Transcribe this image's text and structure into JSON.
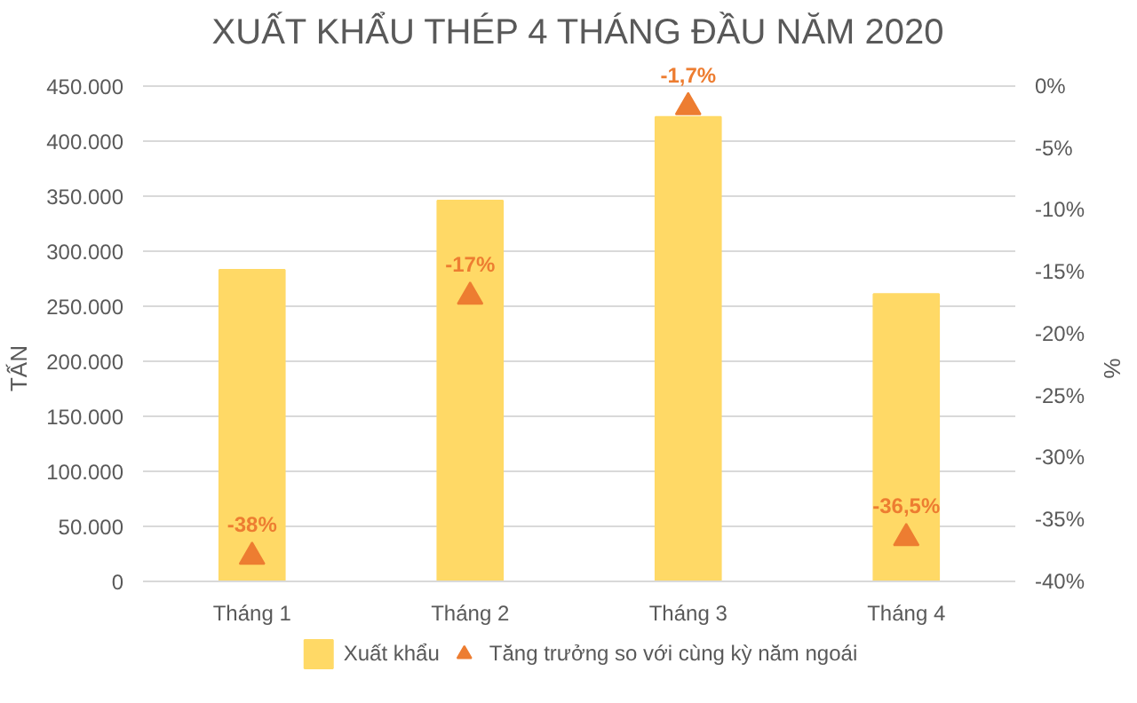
{
  "chart_data": {
    "type": "bar",
    "title": "XUẤT KHẨU THÉP 4 THÁNG ĐẦU NĂM 2020",
    "ylabel": "TẤN",
    "y2label": "%",
    "categories": [
      "Tháng 1",
      "Tháng 2",
      "Tháng 3",
      "Tháng 4"
    ],
    "series": [
      {
        "name": "Xuất khẩu",
        "color": "#ffd966",
        "values": [
          283000,
          346000,
          422000,
          261000
        ]
      },
      {
        "name": "Tăng trưởng so với cùng kỳ năm ngoái",
        "type": "scatter",
        "axis": "y2",
        "marker": "triangle",
        "color": "#ed7d31",
        "values": [
          -38,
          -17,
          -1.7,
          -36.5
        ],
        "value_labels": [
          "-38%",
          "-17%",
          "-1,7%",
          "-36,5%"
        ]
      }
    ],
    "ylim": [
      0,
      450000
    ],
    "yticks": [
      {
        "value": 0,
        "label": "0"
      },
      {
        "value": 50000,
        "label": "50.000"
      },
      {
        "value": 100000,
        "label": "100.000"
      },
      {
        "value": 150000,
        "label": "150.000"
      },
      {
        "value": 200000,
        "label": "200.000"
      },
      {
        "value": 250000,
        "label": "250.000"
      },
      {
        "value": 300000,
        "label": "300.000"
      },
      {
        "value": 350000,
        "label": "350.000"
      },
      {
        "value": 400000,
        "label": "400.000"
      },
      {
        "value": 450000,
        "label": "450.000"
      }
    ],
    "y2lim": [
      -40,
      0
    ],
    "y2ticks": [
      {
        "value": -40,
        "label": "-40%"
      },
      {
        "value": -35,
        "label": "-35%"
      },
      {
        "value": -30,
        "label": "-30%"
      },
      {
        "value": -25,
        "label": "-25%"
      },
      {
        "value": -20,
        "label": "-20%"
      },
      {
        "value": -15,
        "label": "-15%"
      },
      {
        "value": -10,
        "label": "-10%"
      },
      {
        "value": -5,
        "label": "-5%"
      },
      {
        "value": 0,
        "label": "0%"
      }
    ],
    "grid": "y",
    "legend": "bottom"
  }
}
